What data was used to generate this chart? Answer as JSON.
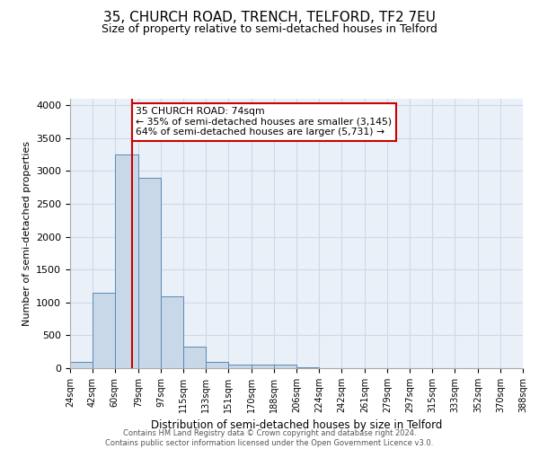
{
  "title": "35, CHURCH ROAD, TRENCH, TELFORD, TF2 7EU",
  "subtitle": "Size of property relative to semi-detached houses in Telford",
  "xlabel": "Distribution of semi-detached houses by size in Telford",
  "ylabel": "Number of semi-detached properties",
  "footer_line1": "Contains HM Land Registry data © Crown copyright and database right 2024.",
  "footer_line2": "Contains public sector information licensed under the Open Government Licence v3.0.",
  "annotation_line1": "35 CHURCH ROAD: 74sqm",
  "annotation_line2": "← 35% of semi-detached houses are smaller (3,145)",
  "annotation_line3": "64% of semi-detached houses are larger (5,731) →",
  "property_size": 74,
  "bin_edges": [
    24,
    42,
    60,
    79,
    97,
    115,
    133,
    151,
    170,
    188,
    206,
    224,
    242,
    261,
    279,
    297,
    315,
    333,
    352,
    370,
    388
  ],
  "bar_heights": [
    100,
    1150,
    3250,
    2900,
    1100,
    330,
    100,
    60,
    55,
    50,
    10,
    5,
    3,
    2,
    1,
    1,
    0,
    0,
    0,
    0
  ],
  "bar_color": "#c8d8e8",
  "bar_edge_color": "#5a8ab5",
  "property_line_color": "#cc0000",
  "annotation_box_edge_color": "#cc0000",
  "annotation_box_face_color": "#ffffff",
  "grid_color": "#d0d8e8",
  "background_color": "#eaf0f8",
  "ylim": [
    0,
    4100
  ],
  "yticks": [
    0,
    500,
    1000,
    1500,
    2000,
    2500,
    3000,
    3500,
    4000
  ]
}
